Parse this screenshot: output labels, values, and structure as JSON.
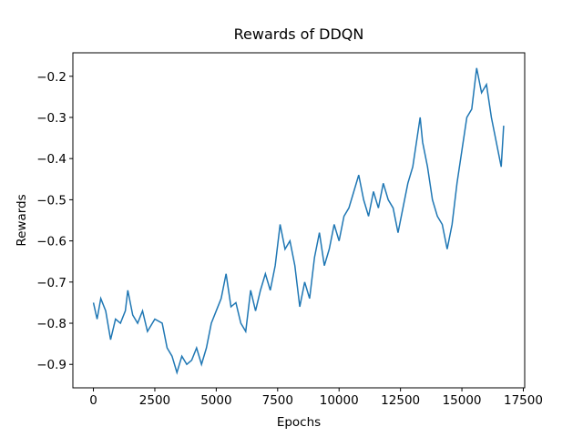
{
  "chart_data": {
    "type": "line",
    "title": "Rewards of DDQN",
    "x_label": "Epochs",
    "y_label": "Rewards",
    "x": [
      0,
      150,
      300,
      500,
      700,
      900,
      1100,
      1300,
      1400,
      1600,
      1800,
      2000,
      2200,
      2500,
      2800,
      3000,
      3200,
      3400,
      3600,
      3800,
      4000,
      4200,
      4400,
      4600,
      4800,
      5000,
      5200,
      5400,
      5600,
      5800,
      6000,
      6200,
      6400,
      6600,
      6800,
      7000,
      7200,
      7400,
      7600,
      7800,
      8000,
      8200,
      8400,
      8600,
      8800,
      9000,
      9200,
      9400,
      9600,
      9800,
      10000,
      10200,
      10400,
      10600,
      10800,
      11000,
      11200,
      11400,
      11600,
      11800,
      12000,
      12200,
      12400,
      12600,
      12800,
      13000,
      13200,
      13300,
      13400,
      13600,
      13800,
      14000,
      14200,
      14400,
      14600,
      14800,
      15000,
      15200,
      15400,
      15600,
      15800,
      16000,
      16200,
      16400,
      16600,
      16700
    ],
    "series": [
      {
        "name": "DDQN",
        "color": "#1f77b4",
        "values": [
          -0.75,
          -0.79,
          -0.74,
          -0.77,
          -0.84,
          -0.79,
          -0.8,
          -0.77,
          -0.72,
          -0.78,
          -0.8,
          -0.77,
          -0.82,
          -0.79,
          -0.8,
          -0.86,
          -0.88,
          -0.92,
          -0.88,
          -0.9,
          -0.89,
          -0.86,
          -0.9,
          -0.86,
          -0.8,
          -0.77,
          -0.74,
          -0.68,
          -0.76,
          -0.75,
          -0.8,
          -0.82,
          -0.72,
          -0.77,
          -0.72,
          -0.68,
          -0.72,
          -0.66,
          -0.56,
          -0.62,
          -0.6,
          -0.66,
          -0.76,
          -0.7,
          -0.74,
          -0.64,
          -0.58,
          -0.66,
          -0.62,
          -0.56,
          -0.6,
          -0.54,
          -0.52,
          -0.48,
          -0.44,
          -0.5,
          -0.54,
          -0.48,
          -0.52,
          -0.46,
          -0.5,
          -0.52,
          -0.58,
          -0.52,
          -0.46,
          -0.42,
          -0.34,
          -0.3,
          -0.36,
          -0.42,
          -0.5,
          -0.54,
          -0.56,
          -0.62,
          -0.56,
          -0.46,
          -0.38,
          -0.3,
          -0.28,
          -0.18,
          -0.24,
          -0.22,
          -0.3,
          -0.36,
          -0.42,
          -0.32
        ]
      }
    ],
    "xlim": [
      -836,
      17556
    ],
    "ylim": [
      -0.957,
      -0.143
    ],
    "xticks": [
      0,
      2500,
      5000,
      7500,
      10000,
      12500,
      15000,
      17500
    ],
    "yticks": [
      {
        "value": -0.9,
        "label": "−0.9"
      },
      {
        "value": -0.8,
        "label": "−0.8"
      },
      {
        "value": -0.7,
        "label": "−0.7"
      },
      {
        "value": -0.6,
        "label": "−0.6"
      },
      {
        "value": -0.5,
        "label": "−0.5"
      },
      {
        "value": -0.4,
        "label": "−0.4"
      },
      {
        "value": -0.3,
        "label": "−0.3"
      },
      {
        "value": -0.2,
        "label": "−0.2"
      }
    ],
    "grid": false
  }
}
